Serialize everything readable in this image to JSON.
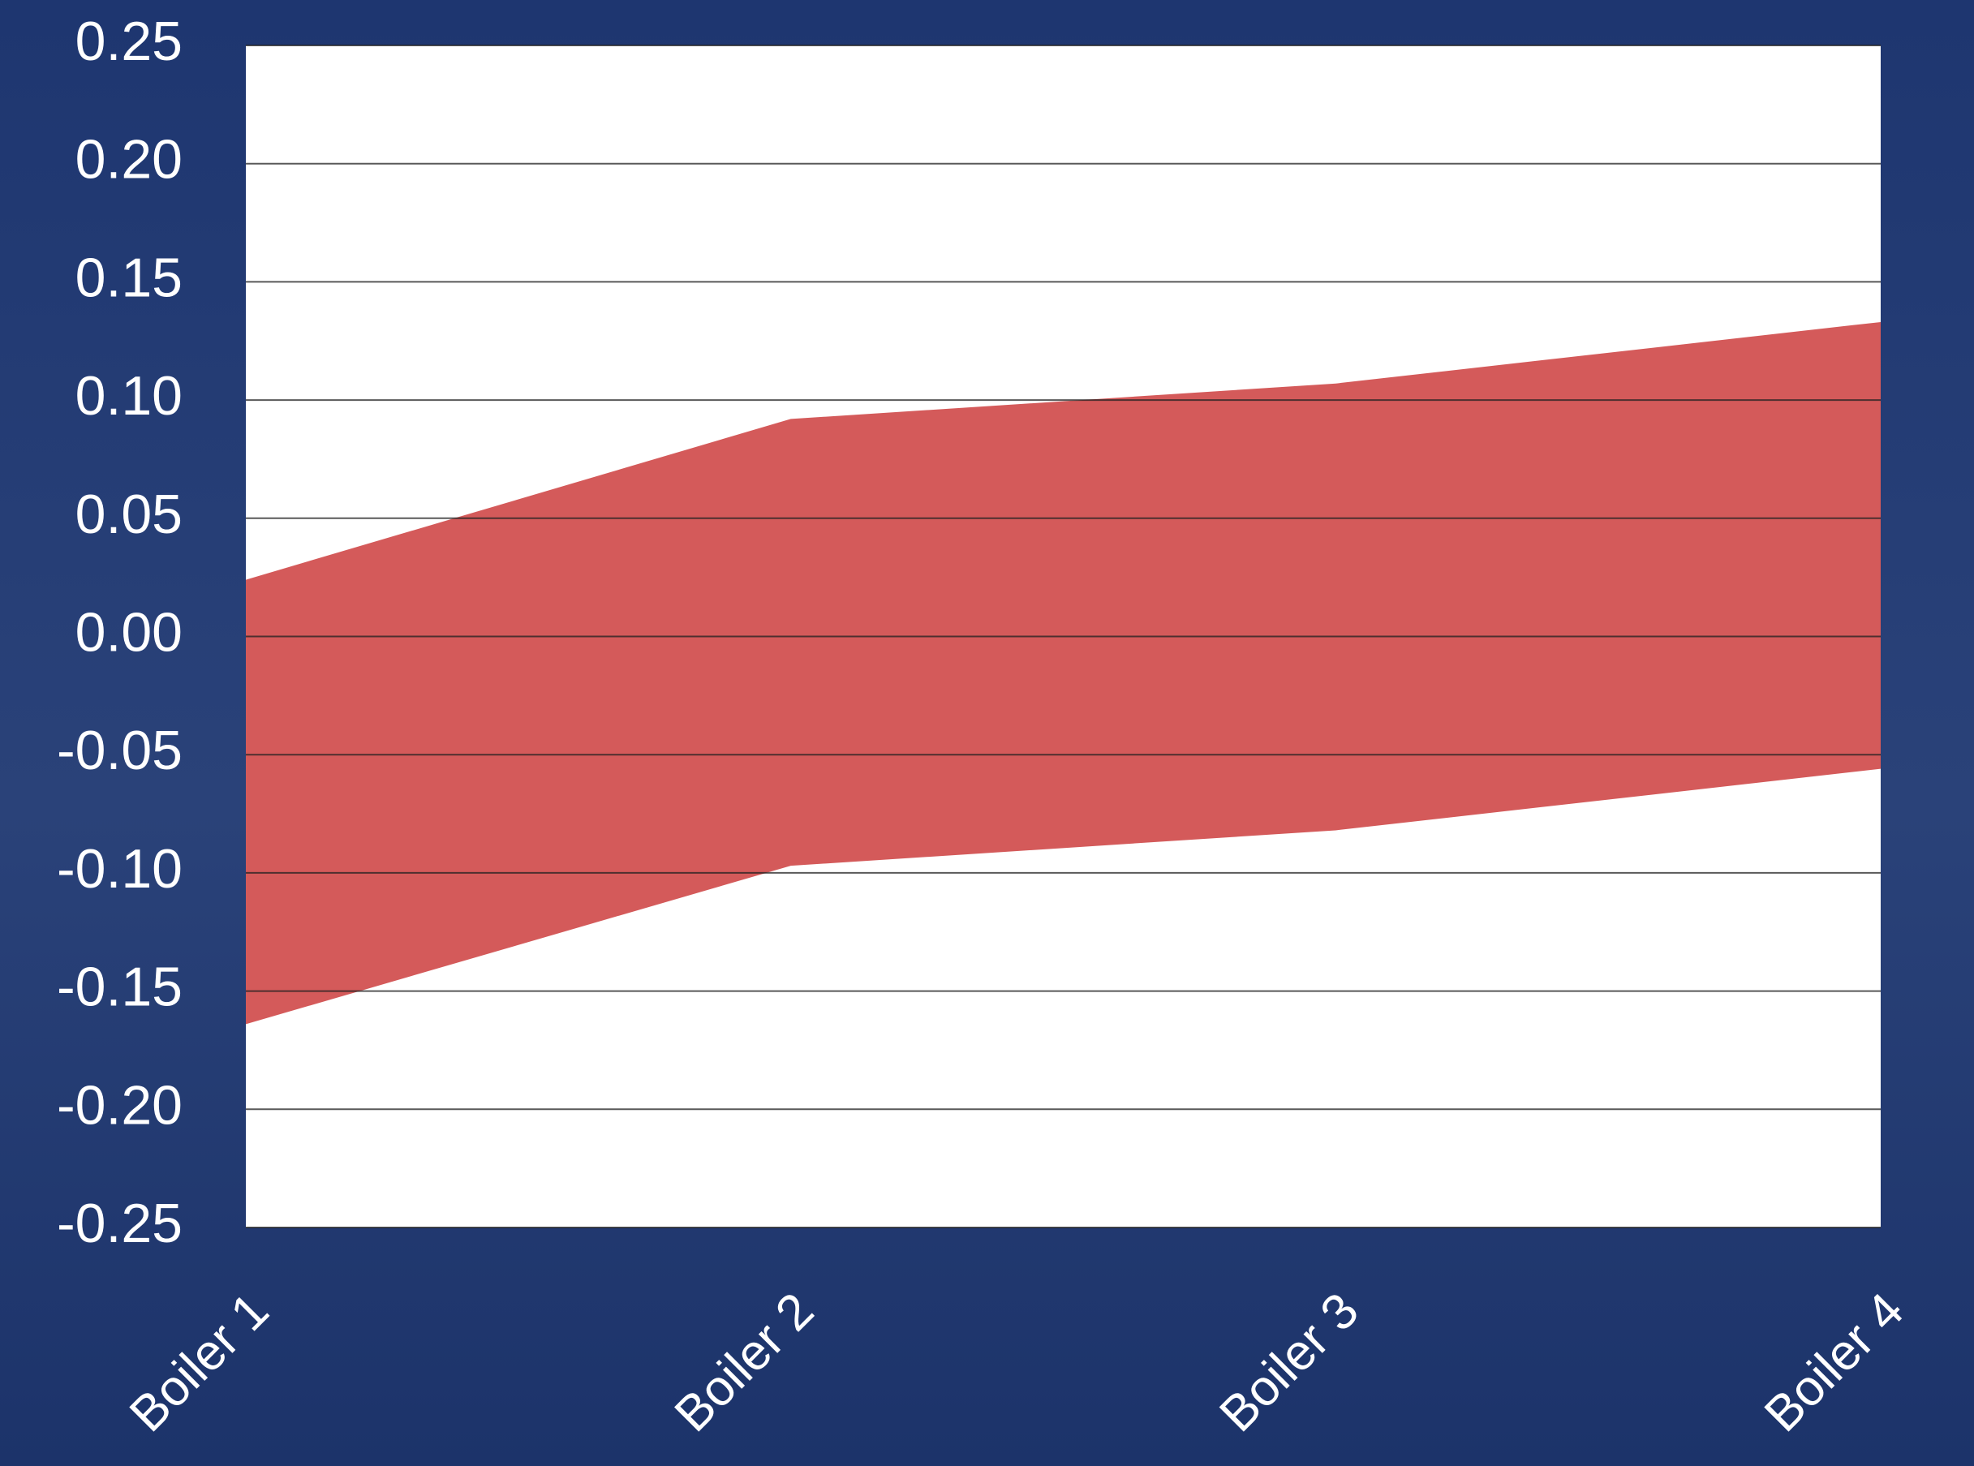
{
  "chart_data": {
    "type": "range_area",
    "categories": [
      "Boiler 1",
      "Boiler 2",
      "Boiler 3",
      "Boiler 4"
    ],
    "high": [
      0.024,
      0.092,
      0.107,
      0.133
    ],
    "low": [
      -0.164,
      -0.097,
      -0.082,
      -0.056
    ],
    "color": "#d45a5a",
    "ylim": [
      -0.25,
      0.25
    ],
    "yticks": [
      -0.25,
      {
        "value": -0.2,
        "label": "-0.20"
      },
      -0.15,
      {
        "value": -0.1,
        "label": "-0.10"
      },
      -0.05,
      {
        "value": 0,
        "label": "0.00"
      },
      0.05,
      {
        "value": 0.1,
        "label": "0.10"
      },
      0.15,
      {
        "value": 0.2,
        "label": "0.20"
      },
      0.25
    ],
    "grid": true
  }
}
